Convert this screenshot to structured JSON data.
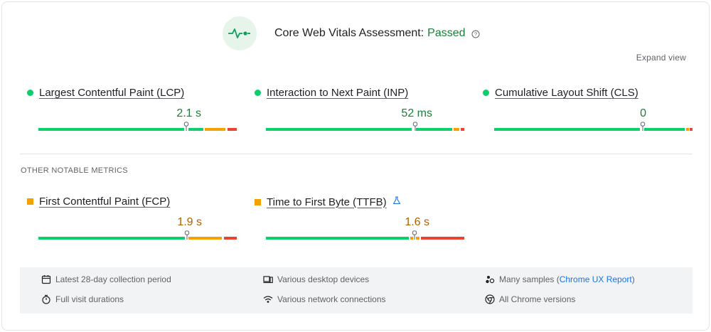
{
  "header": {
    "assessment_label": "Core Web Vitals Assessment:",
    "assessment_status": "Passed",
    "expand_link": "Expand view",
    "accent_color": "#188038"
  },
  "core_metrics": [
    {
      "name": "Largest Contentful Paint (LCP)",
      "value": "2.1 s",
      "rating": "good",
      "marker_position_pct": 74,
      "distribution": {
        "good_pct": 74,
        "needs_improvement_pct": 18,
        "poor_pct": 8
      }
    },
    {
      "name": "Interaction to Next Paint (INP)",
      "value": "52 ms",
      "rating": "good",
      "marker_position_pct": 75,
      "distribution": {
        "good_pct": 92,
        "needs_improvement_pct": 5,
        "poor_pct": 3
      }
    },
    {
      "name": "Cumulative Layout Shift (CLS)",
      "value": "0",
      "rating": "good",
      "marker_position_pct": 74,
      "distribution": {
        "good_pct": 96,
        "needs_improvement_pct": 2,
        "poor_pct": 2
      }
    }
  ],
  "other_section_label": "OTHER NOTABLE METRICS",
  "other_metrics": [
    {
      "name": "First Contentful Paint (FCP)",
      "value": "1.9 s",
      "rating": "needs-improvement",
      "marker_position_pct": 74,
      "distribution": {
        "good_pct": 75,
        "needs_improvement_pct": 19,
        "poor_pct": 6
      }
    },
    {
      "name": "Time to First Byte (TTFB)",
      "value": "1.6 s",
      "rating": "needs-improvement",
      "marker_position_pct": 75,
      "distribution": {
        "good_pct": 74,
        "needs_improvement_pct": 5,
        "poor_pct": 21
      },
      "lab_icon": "flask-icon"
    }
  ],
  "footer": {
    "collection_period": "Latest 28-day collection period",
    "visit_durations": "Full visit durations",
    "devices": "Various desktop devices",
    "network": "Various network connections",
    "samples_prefix": "Many samples (",
    "samples_link": "Chrome UX Report",
    "samples_suffix": ")",
    "chrome_versions": "All Chrome versions"
  },
  "colors": {
    "good": "#0cce6b",
    "needs_improvement": "#f4a100",
    "poor": "#ea4335",
    "link": "#1a73e8"
  }
}
